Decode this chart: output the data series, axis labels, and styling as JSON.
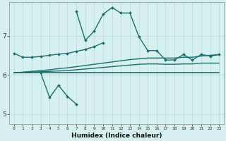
{
  "xlabel": "Humidex (Indice chaleur)",
  "bg_color": "#d6f0f0",
  "grid_color": "#b8d8d8",
  "line_color": "#1a6e6a",
  "xlim": [
    -0.5,
    23.5
  ],
  "ylim": [
    4.75,
    7.85
  ],
  "yticks": [
    5,
    6,
    7
  ],
  "xticks": [
    0,
    1,
    2,
    3,
    4,
    5,
    6,
    7,
    8,
    9,
    10,
    11,
    12,
    13,
    14,
    15,
    16,
    17,
    18,
    19,
    20,
    21,
    22,
    23
  ],
  "line_diag": {
    "x": [
      0,
      1,
      2,
      3,
      4,
      5,
      6,
      7,
      8,
      9,
      10
    ],
    "y": [
      6.55,
      6.45,
      6.45,
      6.47,
      6.5,
      6.53,
      6.55,
      6.6,
      6.65,
      6.72,
      6.82
    ]
  },
  "line_dip": {
    "x": [
      3,
      4,
      5,
      6,
      7
    ],
    "y": [
      6.05,
      5.42,
      5.73,
      5.45,
      5.25
    ]
  },
  "line_peak": {
    "x": [
      7,
      8,
      9,
      10,
      11,
      12,
      13,
      14,
      15,
      16,
      17,
      18,
      19,
      20,
      21,
      22,
      23
    ],
    "y": [
      7.62,
      6.88,
      7.12,
      7.55,
      7.72,
      7.58,
      7.58,
      6.98,
      6.62,
      6.62,
      6.38,
      6.38,
      6.52,
      6.38,
      6.52,
      6.48,
      6.52
    ]
  },
  "line_flat1": {
    "x": [
      0,
      1,
      2,
      3,
      4,
      5,
      6,
      7,
      8,
      9,
      10,
      11,
      12,
      13,
      14,
      15,
      16,
      17,
      18,
      19,
      20,
      21,
      22,
      23
    ],
    "y": [
      6.05,
      6.05,
      6.05,
      6.05,
      6.05,
      6.05,
      6.05,
      6.05,
      6.05,
      6.05,
      6.05,
      6.05,
      6.05,
      6.05,
      6.05,
      6.05,
      6.05,
      6.05,
      6.05,
      6.05,
      6.05,
      6.05,
      6.05,
      6.05
    ]
  },
  "line_rise1": {
    "x": [
      0,
      1,
      2,
      3,
      4,
      5,
      6,
      7,
      8,
      9,
      10,
      11,
      12,
      13,
      14,
      15,
      16,
      17,
      18,
      19,
      20,
      21,
      22,
      23
    ],
    "y": [
      6.05,
      6.06,
      6.07,
      6.08,
      6.09,
      6.1,
      6.11,
      6.13,
      6.15,
      6.17,
      6.19,
      6.21,
      6.23,
      6.25,
      6.27,
      6.28,
      6.28,
      6.27,
      6.27,
      6.28,
      6.28,
      6.3,
      6.3,
      6.3
    ]
  },
  "line_rise2": {
    "x": [
      0,
      1,
      2,
      3,
      4,
      5,
      6,
      7,
      8,
      9,
      10,
      11,
      12,
      13,
      14,
      15,
      16,
      17,
      18,
      19,
      20,
      21,
      22,
      23
    ],
    "y": [
      6.05,
      6.07,
      6.09,
      6.11,
      6.13,
      6.16,
      6.18,
      6.21,
      6.24,
      6.27,
      6.3,
      6.33,
      6.36,
      6.39,
      6.41,
      6.43,
      6.43,
      6.43,
      6.43,
      6.45,
      6.45,
      6.48,
      6.5,
      6.52
    ]
  }
}
